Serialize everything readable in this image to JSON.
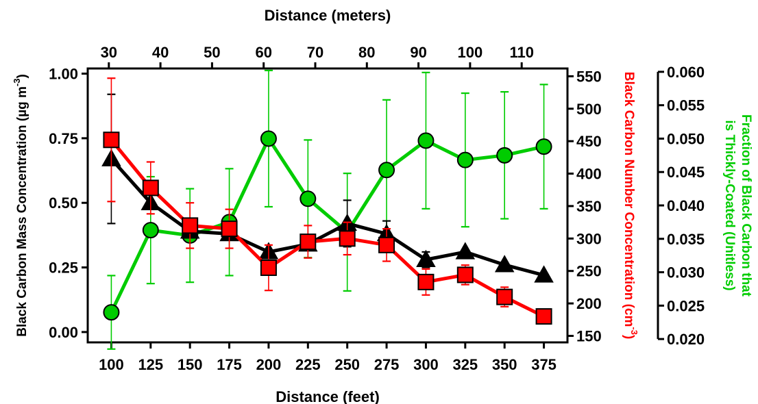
{
  "chart_data": {
    "type": "line",
    "x_bottom": {
      "label": "Distance (feet)",
      "ticks": [
        100,
        125,
        150,
        175,
        200,
        225,
        250,
        275,
        300,
        325,
        350,
        375
      ],
      "lim": [
        85,
        390
      ]
    },
    "x_top": {
      "label": "Distance (meters)",
      "ticks": [
        30,
        40,
        50,
        60,
        70,
        80,
        90,
        100,
        110
      ],
      "feet_per_meter": 3.28084
    },
    "y_left": {
      "label": "Black Carbon Mass Concentration (µg m",
      "label_sup": "-3",
      "label_tail": ")",
      "lim": [
        -0.04,
        1.02
      ],
      "ticks": [
        0.0,
        0.25,
        0.5,
        0.75,
        1.0
      ],
      "tick_labels": [
        "0.00",
        "0.25",
        "0.50",
        "0.75",
        "1.00"
      ]
    },
    "y_right1": {
      "label": "Black Carbon Number Concentration (cm",
      "label_sup": "-3",
      "label_tail": ")",
      "lim": [
        140,
        562
      ],
      "ticks": [
        150,
        200,
        250,
        300,
        350,
        400,
        450,
        500,
        550
      ],
      "tick_labels": [
        "150",
        "200",
        "250",
        "300",
        "350",
        "400",
        "450",
        "500",
        "550"
      ]
    },
    "y_right2": {
      "label_line1": "Fraction of Black Carbon that",
      "label_line2": "is Thickly-Coated (Unitless)",
      "lim": [
        0.0195,
        0.0605
      ],
      "ticks": [
        0.02,
        0.025,
        0.03,
        0.035,
        0.04,
        0.045,
        0.05,
        0.055,
        0.06
      ],
      "tick_labels": [
        "0.020",
        "0.025",
        "0.030",
        "0.035",
        "0.040",
        "0.045",
        "0.050",
        "0.055",
        "0.060"
      ]
    },
    "series": [
      {
        "axis": "y_left",
        "marker": "triangle",
        "color": "#000000",
        "x": [
          100,
          125,
          150,
          175,
          200,
          225,
          250,
          275,
          300,
          325,
          350,
          375
        ],
        "y": [
          0.67,
          0.5,
          0.39,
          0.38,
          0.31,
          0.34,
          0.42,
          0.38,
          0.28,
          0.31,
          0.26,
          0.22
        ],
        "err": [
          0.25,
          0.0,
          0.0,
          0.0,
          0.0,
          0.0,
          0.09,
          0.05,
          0.03,
          0.0,
          0.0,
          0.0
        ]
      },
      {
        "axis": "y_right1",
        "marker": "square",
        "color": "#ff0000",
        "x": [
          100,
          125,
          150,
          175,
          200,
          225,
          250,
          275,
          300,
          325,
          350,
          375
        ],
        "y": [
          452,
          378,
          320,
          315,
          255,
          295,
          300,
          290,
          233,
          244,
          210,
          180
        ],
        "err": [
          95,
          40,
          35,
          30,
          35,
          25,
          25,
          25,
          20,
          15,
          15,
          8
        ]
      },
      {
        "axis": "y_right2",
        "marker": "circle",
        "color": "#00cc00",
        "x": [
          100,
          125,
          150,
          175,
          200,
          225,
          250,
          275,
          300,
          325,
          350,
          375
        ],
        "y": [
          0.024,
          0.0363,
          0.0355,
          0.0375,
          0.05,
          0.041,
          0.036,
          0.0453,
          0.0497,
          0.0468,
          0.0475,
          0.0488
        ],
        "err": [
          0.0055,
          0.008,
          0.007,
          0.008,
          0.0102,
          0.0088,
          0.0088,
          0.0105,
          0.0102,
          0.01,
          0.0095,
          0.0093
        ]
      }
    ],
    "colors": {
      "black": "#000000",
      "red": "#ff0000",
      "green": "#00cc00"
    }
  }
}
